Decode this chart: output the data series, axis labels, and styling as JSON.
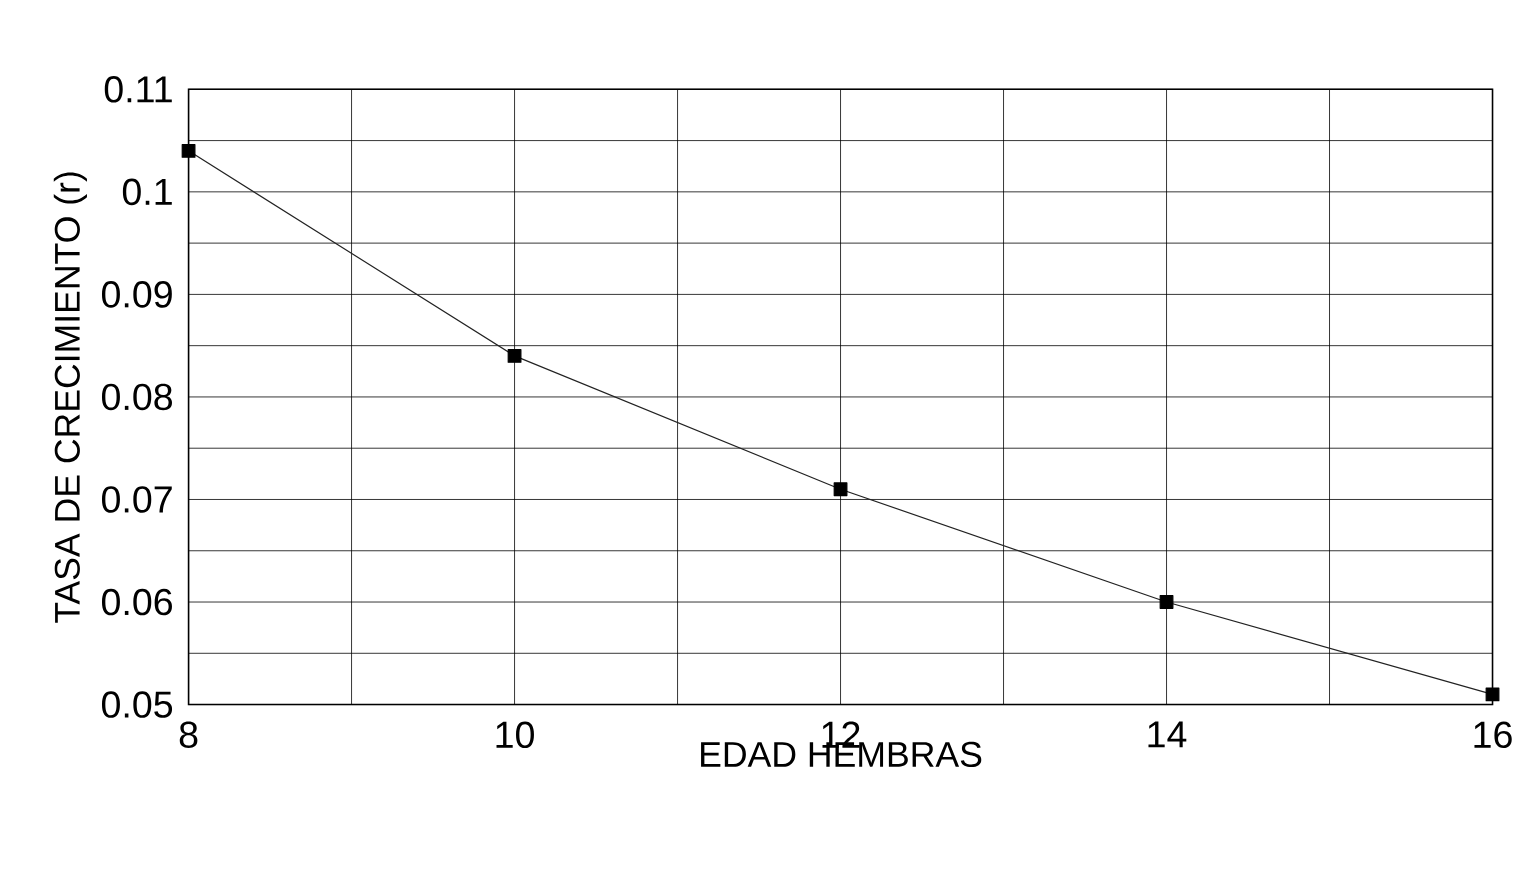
{
  "chart_data": {
    "type": "line",
    "xlabel": "EDAD HEMBRAS",
    "ylabel": "TASA DE CRECIMIENTO (r)",
    "x": [
      8,
      10,
      12,
      14,
      16
    ],
    "series": [
      {
        "color": "#222222",
        "values": [
          0.104,
          0.084,
          0.071,
          0.06,
          0.051
        ]
      }
    ],
    "xlim": [
      8,
      16
    ],
    "xticks": [
      8,
      {
        "value": 9,
        "label": null
      },
      10,
      {
        "value": 11,
        "label": null
      },
      12,
      {
        "value": 13,
        "label": null
      },
      14,
      {
        "value": 15,
        "label": null
      },
      16
    ],
    "ylim": [
      0.05,
      0.11
    ],
    "yticks": [
      0.05,
      {
        "value": 0.055,
        "label": null
      },
      0.06,
      {
        "value": 0.065,
        "label": null
      },
      0.07,
      {
        "value": 0.075,
        "label": null
      },
      0.08,
      {
        "value": 0.085,
        "label": null
      },
      0.09,
      {
        "value": 0.095,
        "label": null
      },
      0.1,
      {
        "value": 0.105,
        "label": null
      },
      0.11
    ],
    "grid": true,
    "marker": "square",
    "line_style": "solid"
  }
}
